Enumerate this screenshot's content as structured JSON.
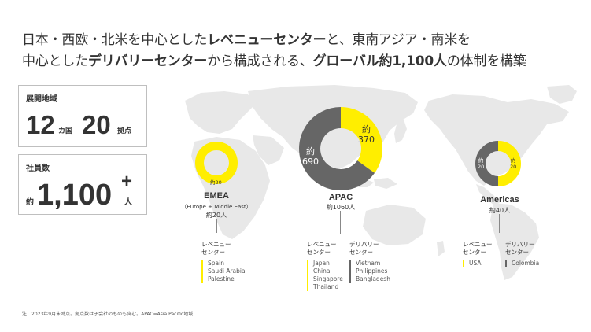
{
  "headline": {
    "line1_a": "日本・西欧・北米を中心とした",
    "line1_b": "レベニューセンター",
    "line1_c": "と、東南アジア・南米を",
    "line2_a": "中心とした",
    "line2_b": "デリバリーセンター",
    "line2_c": "から構成される、",
    "line2_d": "グローバル約1,100人",
    "line2_e": "の体制を構築"
  },
  "stats": {
    "regions": {
      "label": "展開地域",
      "countries_num": "12",
      "countries_unit": "カ国",
      "sites_num": "20",
      "sites_unit": "拠点"
    },
    "employees": {
      "label": "社員数",
      "prefix": "約",
      "num": "1,100",
      "plus": "+",
      "unit": "人"
    }
  },
  "colors": {
    "revenue": "#ffee00",
    "delivery": "#666666",
    "map": "#e8e8e8"
  },
  "regions": {
    "emea": {
      "name": "EMEA",
      "sub": "（Europe + Middle East）",
      "count": "約20人",
      "revenue_value": 20,
      "delivery_value": 0,
      "revenue_label": "約20",
      "revenue_head_1": "レベニュー",
      "revenue_head_2": "センター",
      "revenue_items": [
        "Spain",
        "Saudi Arabia",
        "Palestine"
      ]
    },
    "apac": {
      "name": "APAC",
      "count": "約1060人",
      "revenue_value": 370,
      "delivery_value": 690,
      "revenue_label_1": "約",
      "revenue_label_2": "370",
      "delivery_label_1": "約",
      "delivery_label_2": "690",
      "revenue_head_1": "レベニュー",
      "revenue_head_2": "センター",
      "revenue_items": [
        "Japan",
        "China",
        "Singapore",
        "Thailand"
      ],
      "delivery_head_1": "デリバリー",
      "delivery_head_2": "センター",
      "delivery_items": [
        "Vietnam",
        "Philippines",
        "Bangladesh"
      ]
    },
    "americas": {
      "name": "Americas",
      "count": "約40人",
      "revenue_value": 20,
      "delivery_value": 20,
      "revenue_label_1": "約",
      "revenue_label_2": "20",
      "delivery_label_1": "約",
      "delivery_label_2": "20",
      "revenue_head_1": "レベニュー",
      "revenue_head_2": "センター",
      "revenue_items": [
        "USA"
      ],
      "delivery_head_1": "デリバリー",
      "delivery_head_2": "センター",
      "delivery_items": [
        "Colombia"
      ]
    }
  },
  "footnote": "注：2023年9月末時点。拠点数は子会社のものも含む。APAC=Asia Pacific地域"
}
